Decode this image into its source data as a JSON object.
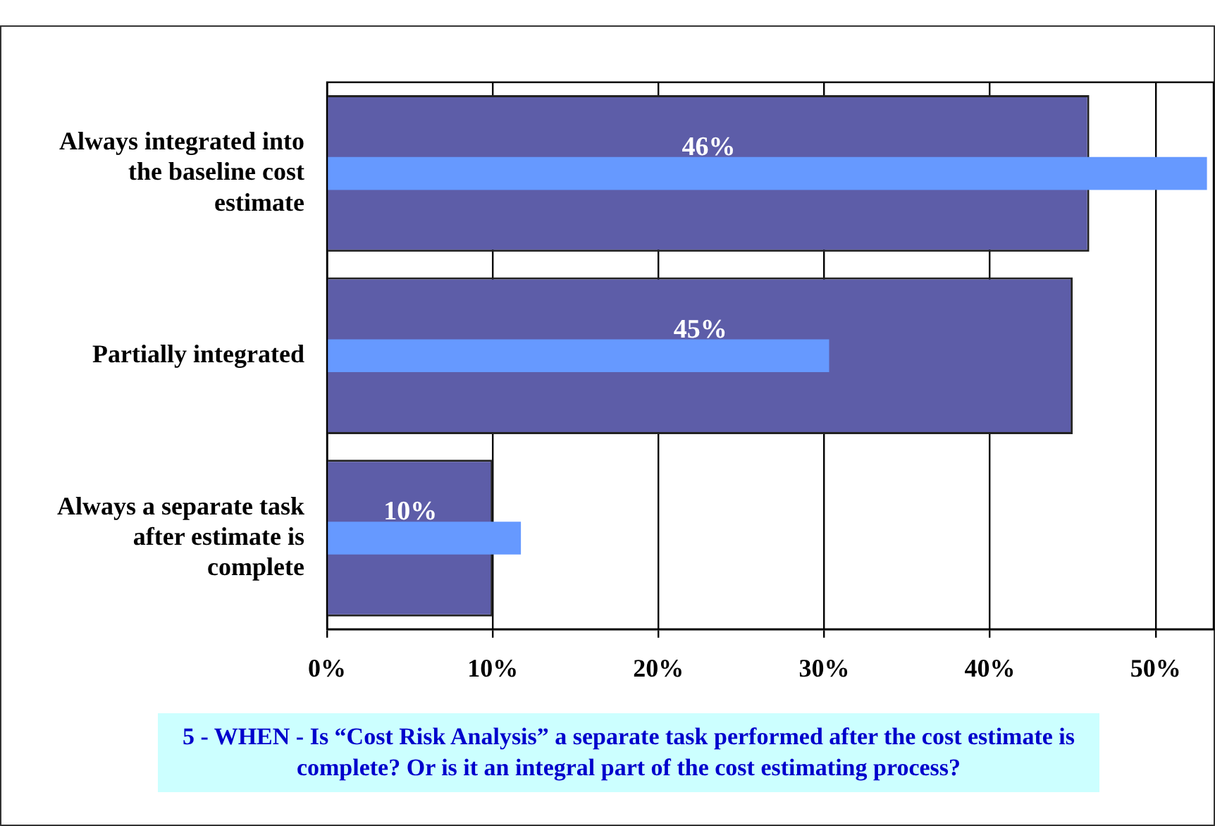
{
  "chart_data": {
    "type": "bar",
    "orientation": "horizontal",
    "categories": [
      "Always integrated into the baseline cost estimate",
      "Partially integrated",
      "Always a separate task after estimate is complete"
    ],
    "series": [
      {
        "color": "#5d5da8",
        "values": [
          46,
          45,
          10
        ],
        "value_labels": [
          "46%",
          "45%",
          "10%"
        ]
      },
      {
        "color": "#6699ff",
        "values": [
          53.1,
          30.3,
          11.7
        ]
      }
    ],
    "xlim": [
      0,
      53.5
    ],
    "xticks": [
      {
        "value": 0,
        "label": "0%"
      },
      {
        "value": 10,
        "label": "10%"
      },
      {
        "value": 20,
        "label": "20%"
      },
      {
        "value": 30,
        "label": "30%"
      },
      {
        "value": 40,
        "label": "40%"
      },
      {
        "value": 50,
        "label": "50%"
      }
    ],
    "grid": "x",
    "legend": false,
    "annotations": [
      "5 - WHEN - Is “Cost Risk Analysis” a separate task performed after the cost estimate is complete?  Or is it an integral part of the cost estimating process?"
    ]
  }
}
